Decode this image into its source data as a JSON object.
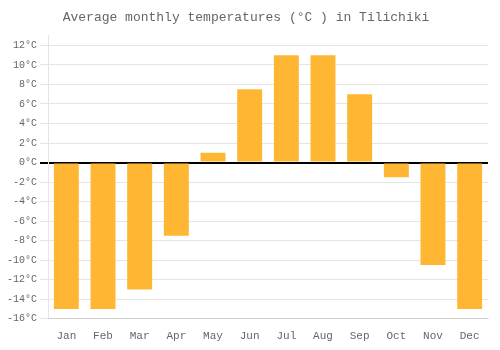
{
  "chart_data": {
    "type": "bar",
    "title": "Average monthly temperatures (°C ) in Tilichiki",
    "categories": [
      "Jan",
      "Feb",
      "Mar",
      "Apr",
      "May",
      "Jun",
      "Jul",
      "Aug",
      "Sep",
      "Oct",
      "Nov",
      "Dec"
    ],
    "values": [
      -15,
      -15,
      -13,
      -7.5,
      1,
      7.5,
      11,
      11,
      7,
      -1.5,
      -10.5,
      -15
    ],
    "color": "#FFB733",
    "ylim": [
      -16,
      13
    ],
    "yticks": [
      {
        "value": -16,
        "label": "-16°C"
      },
      {
        "value": -14,
        "label": "-14°C"
      },
      {
        "value": -12,
        "label": "-12°C"
      },
      {
        "value": -10,
        "label": "-10°C"
      },
      {
        "value": -8,
        "label": "-8°C"
      },
      {
        "value": -6,
        "label": "-6°C"
      },
      {
        "value": -4,
        "label": "-4°C"
      },
      {
        "value": -2,
        "label": "-2°C"
      },
      {
        "value": 0,
        "label": "0°C"
      },
      {
        "value": 2,
        "label": "2°C"
      },
      {
        "value": 4,
        "label": "4°C"
      },
      {
        "value": 6,
        "label": "6°C"
      },
      {
        "value": 8,
        "label": "8°C"
      },
      {
        "value": 10,
        "label": "10°C"
      },
      {
        "value": 12,
        "label": "12°C"
      }
    ],
    "grid": true
  }
}
